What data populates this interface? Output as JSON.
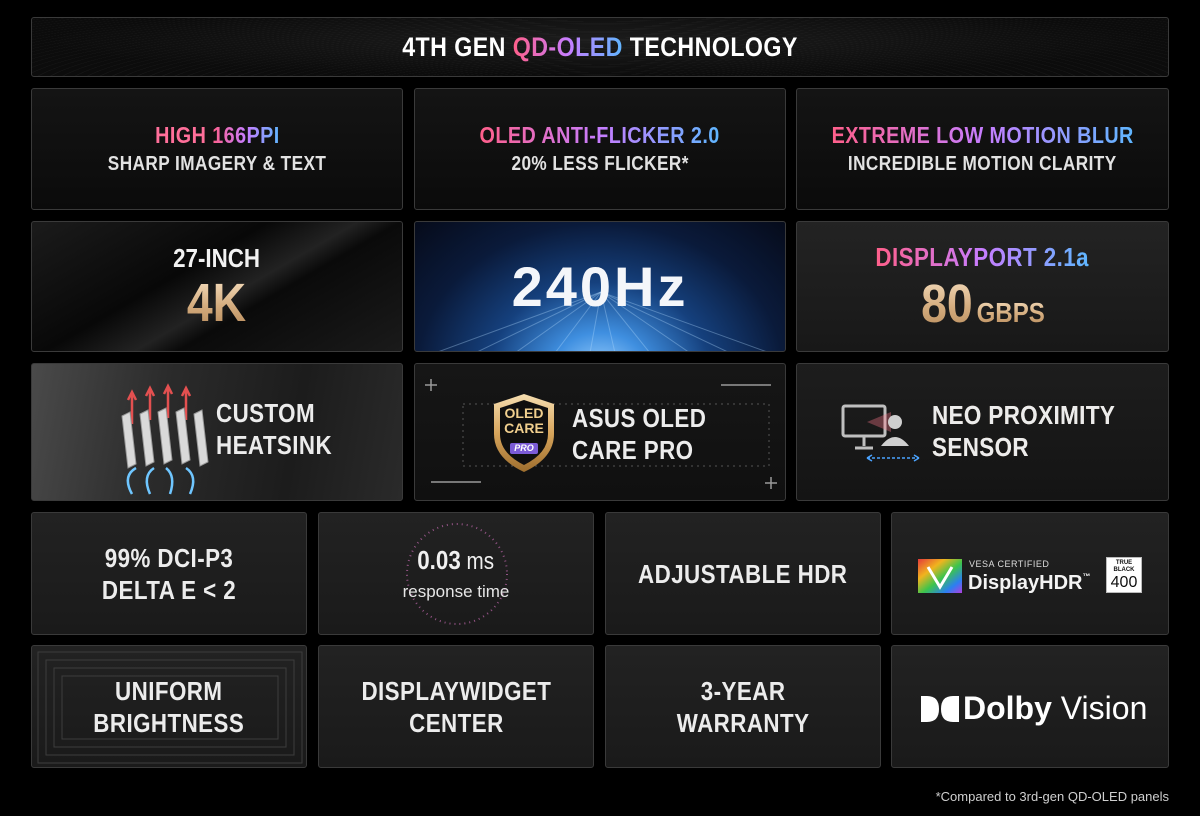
{
  "title": {
    "prefix": "4TH GEN ",
    "highlight": "QD-OLED",
    "suffix": " TECHNOLOGY"
  },
  "row1": [
    {
      "head_a": "HIGH ",
      "head_b": "166PPI",
      "sub": "SHARP IMAGERY & TEXT"
    },
    {
      "head": "OLED ANTI-FLICKER 2.0",
      "sub": "20% LESS FLICKER*"
    },
    {
      "head": "EXTREME LOW MOTION BLUR",
      "sub": "INCREDIBLE MOTION CLARITY"
    }
  ],
  "row2": {
    "size": {
      "line1": "27-INCH",
      "line2": "4K"
    },
    "refresh": {
      "value": "240Hz"
    },
    "port": {
      "line1": "DISPLAYPORT 2.1a",
      "number": "80",
      "unit": "GBPS"
    }
  },
  "row3": {
    "heatsink": {
      "line1": "CUSTOM",
      "line2": "HEATSINK",
      "icon": "heatsink-icon"
    },
    "care": {
      "badge_line1": "OLED",
      "badge_line2": "CARE",
      "badge_pro": "PRO",
      "line1": "ASUS OLED",
      "line2": "CARE PRO",
      "icon": "shield-badge-icon"
    },
    "proximity": {
      "line1": "NEO PROXIMITY",
      "line2": "SENSOR",
      "icon": "monitor-user-icon"
    }
  },
  "row4": {
    "gamut": {
      "line1": "99% DCI-P3",
      "line2": "DELTA E < 2"
    },
    "response": {
      "value": "0.03",
      "unit": " ms",
      "label": "response time"
    },
    "hdr": {
      "label": "ADJUSTABLE HDR"
    },
    "vesa": {
      "certified": "VESA CERTIFIED",
      "brand": "DisplayHDR",
      "tm": "™",
      "tb1": "TRUE",
      "tb2": "BLACK",
      "tb3": "400"
    }
  },
  "row5": {
    "uniform": {
      "line1": "UNIFORM",
      "line2": "BRIGHTNESS"
    },
    "widget": {
      "line1": "DISPLAYWIDGET",
      "line2": "CENTER"
    },
    "warranty": {
      "line1": "3-YEAR",
      "line2": "WARRANTY"
    },
    "dolby": {
      "brand": "Dolby",
      "product": "Vision"
    }
  },
  "footnote": "*Compared to 3rd-gen QD-OLED panels",
  "colors": {
    "gradient_start": "#ff5f8a",
    "gradient_mid": "#c77dff",
    "gradient_end": "#5fb6ff",
    "gold": "#d4ac7e"
  }
}
